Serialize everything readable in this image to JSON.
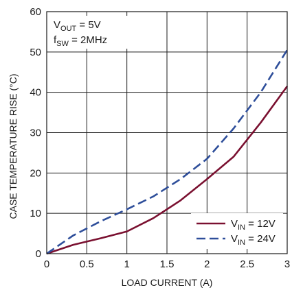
{
  "chart_data": {
    "type": "line",
    "xlabel": "LOAD CURRENT (A)",
    "ylabel": "CASE TEMPERATURE RISE  (°C)",
    "xlim": [
      0,
      3
    ],
    "ylim": [
      0,
      60
    ],
    "x_ticks": [
      "0",
      "0.5",
      "1",
      "1.5",
      "2",
      "2.5",
      "3"
    ],
    "y_ticks": [
      "0",
      "10",
      "20",
      "30",
      "40",
      "50",
      "60"
    ],
    "grid": true,
    "legend_position": "bottom-right",
    "annotations": [
      {
        "main": "V",
        "sub": "OUT",
        "rest": " = 5V"
      },
      {
        "main": "f",
        "sub": "SW",
        "rest": " = 2MHz"
      }
    ],
    "series": [
      {
        "legend": {
          "main": "V",
          "sub": "IN",
          "rest": " = 12V"
        },
        "color": "#7a1030",
        "style": "solid",
        "x": [
          0,
          0.33,
          0.67,
          1.0,
          1.33,
          1.67,
          2.0,
          2.33,
          2.67,
          3.0
        ],
        "y": [
          0,
          2.2,
          3.8,
          5.5,
          8.8,
          13.2,
          18.5,
          24.0,
          32.5,
          41.5
        ]
      },
      {
        "legend": {
          "main": "V",
          "sub": "IN",
          "rest": " = 24V"
        },
        "color": "#2e4e9a",
        "style": "dashed",
        "x": [
          0,
          0.33,
          0.67,
          1.0,
          1.33,
          1.67,
          2.0,
          2.33,
          2.67,
          3.0
        ],
        "y": [
          0,
          4.5,
          8.0,
          11.0,
          14.2,
          18.5,
          23.5,
          31.0,
          40.0,
          50.5
        ]
      }
    ]
  }
}
